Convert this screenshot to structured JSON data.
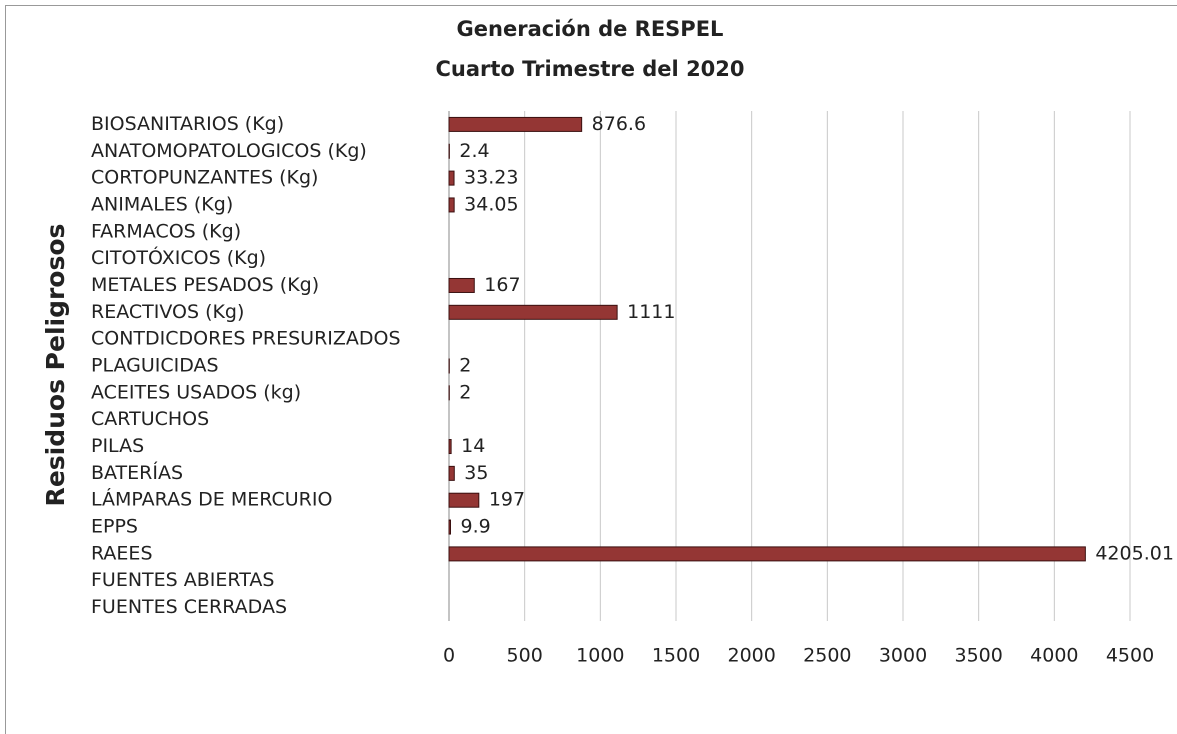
{
  "chart_data": {
    "type": "barh",
    "title": "Generación de RESPEL",
    "subtitle": "Cuarto Trimestre del 2020",
    "ylabel": "Residuos Peligrosos",
    "categories": [
      "BIOSANITARIOS (Kg)",
      "ANATOMOPATOLOGICOS (Kg)",
      "CORTOPUNZANTES (Kg)",
      "ANIMALES (Kg)",
      "FARMACOS (Kg)",
      "CITOTÓXICOS (Kg)",
      "METALES PESADOS (Kg)",
      "REACTIVOS (Kg)",
      "CONTDICDORES PRESURIZADOS",
      "PLAGUICIDAS",
      "ACEITES USADOS (kg)",
      "CARTUCHOS",
      "PILAS",
      "BATERÍAS",
      "LÁMPARAS DE MERCURIO",
      "EPPS",
      "RAEES",
      "FUENTES ABIERTAS",
      "FUENTES CERRADAS"
    ],
    "values": [
      876.6,
      2.4,
      33.23,
      34.05,
      0,
      0,
      167,
      1111,
      0,
      2,
      2,
      0,
      14,
      35,
      197,
      9.9,
      4205.01,
      0,
      0
    ],
    "value_labels": [
      "876.6",
      "2.4",
      "33.23",
      "34.05",
      null,
      null,
      "167",
      "1111",
      null,
      "2",
      "2",
      null,
      "14",
      "35",
      "197",
      "9.9",
      "4205.01",
      null,
      null
    ],
    "color": "#943634",
    "xlim": [
      0,
      4500
    ],
    "xticks": [
      0,
      500,
      1000,
      1500,
      2000,
      2500,
      3000,
      3500,
      4000,
      4500
    ],
    "grid": true
  }
}
